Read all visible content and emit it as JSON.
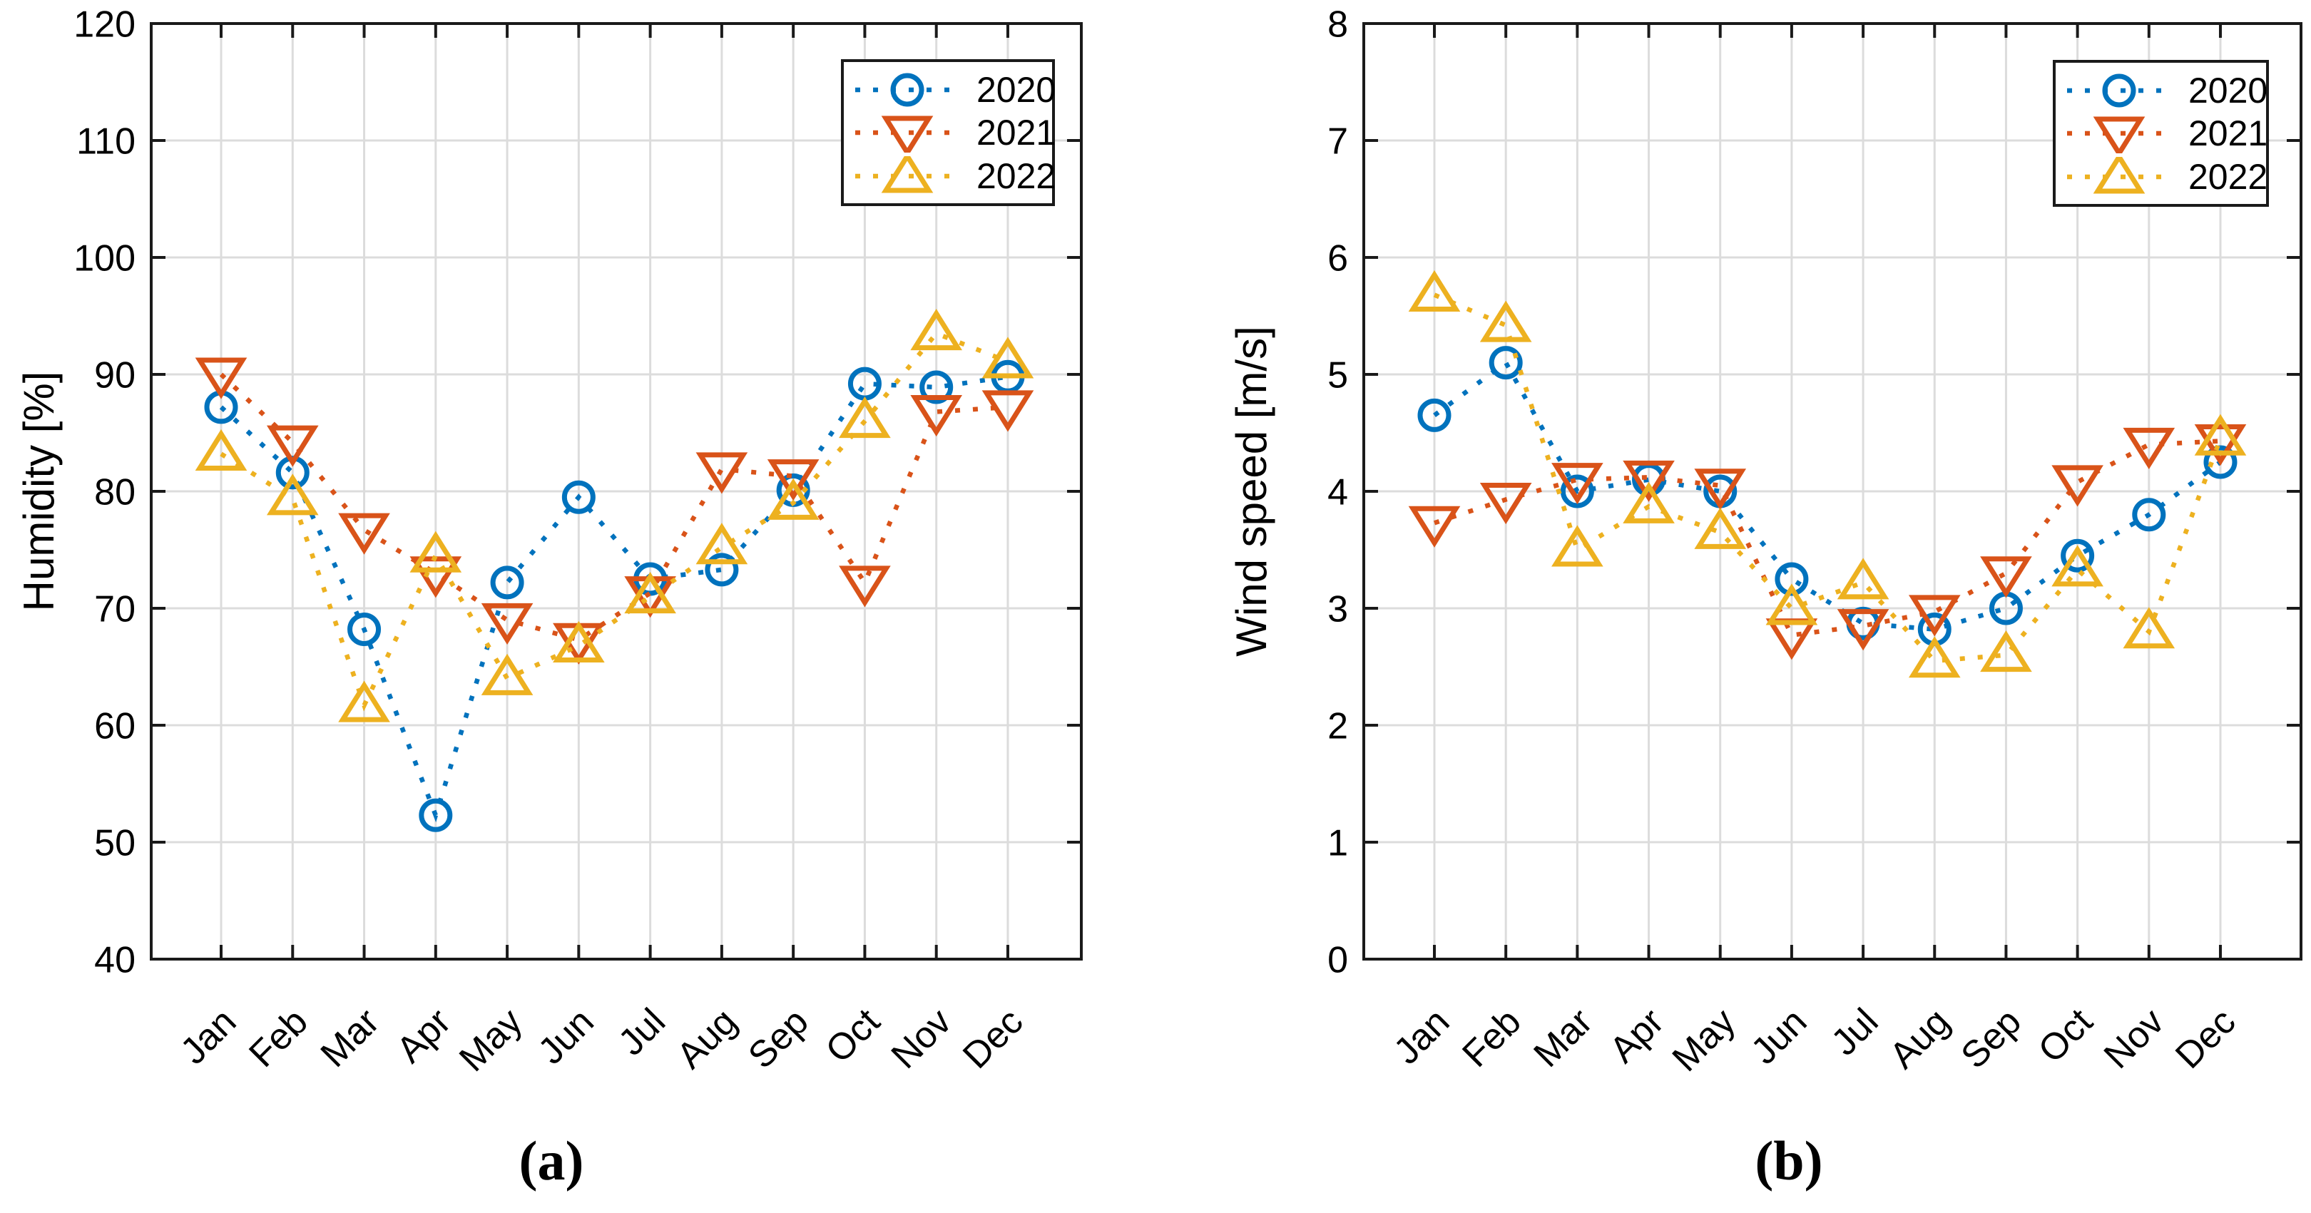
{
  "figure": {
    "background": "#ffffff",
    "axis_color": "#1a1a1a",
    "grid_color": "#dcdcdc",
    "captions": [
      "(a)",
      "(b)"
    ]
  },
  "chart_data": [
    {
      "type": "line",
      "panel": "a",
      "caption": "(a)",
      "title": "",
      "xlabel": "",
      "ylabel": "Humidity [%]",
      "categories": [
        "Jan",
        "Feb",
        "Mar",
        "Apr",
        "May",
        "Jun",
        "Jul",
        "Aug",
        "Sep",
        "Oct",
        "Nov",
        "Dec"
      ],
      "ylim": [
        40,
        120
      ],
      "yticks": [
        40,
        50,
        60,
        70,
        80,
        90,
        100,
        110,
        120
      ],
      "grid": true,
      "legend": {
        "position": "top-right",
        "entries": [
          "2020",
          "2021",
          "2022"
        ]
      },
      "series": [
        {
          "name": "2020",
          "color": "#0072BD",
          "marker": "circle",
          "linestyle": "dotted",
          "values": [
            87.2,
            81.6,
            68.2,
            52.3,
            72.2,
            79.5,
            72.5,
            73.3,
            80.1,
            89.2,
            88.9,
            89.8
          ]
        },
        {
          "name": "2021",
          "color": "#D95319",
          "marker": "triangle-down",
          "linestyle": "dotted",
          "values": [
            90.0,
            84.2,
            76.7,
            73.0,
            69.0,
            67.3,
            71.3,
            81.9,
            81.3,
            72.2,
            86.8,
            87.2
          ]
        },
        {
          "name": "2022",
          "color": "#EDB120",
          "marker": "triangle-up",
          "linestyle": "dotted",
          "values": [
            83.2,
            79.4,
            61.7,
            74.5,
            64.0,
            66.8,
            71.0,
            75.2,
            79.0,
            86.0,
            93.5,
            91.1
          ]
        }
      ]
    },
    {
      "type": "line",
      "panel": "b",
      "caption": "(b)",
      "title": "",
      "xlabel": "",
      "ylabel": "Wind speed [m/s]",
      "categories": [
        "Jan",
        "Feb",
        "Mar",
        "Apr",
        "May",
        "Jun",
        "Jul",
        "Aug",
        "Sep",
        "Oct",
        "Nov",
        "Dec"
      ],
      "ylim": [
        0,
        8
      ],
      "yticks": [
        0,
        1,
        2,
        3,
        4,
        5,
        6,
        7,
        8
      ],
      "grid": true,
      "legend": {
        "position": "top-right",
        "entries": [
          "2020",
          "2021",
          "2022"
        ]
      },
      "series": [
        {
          "name": "2020",
          "color": "#0072BD",
          "marker": "circle",
          "linestyle": "dotted",
          "values": [
            4.65,
            5.1,
            4.0,
            4.1,
            4.0,
            3.25,
            2.87,
            2.82,
            3.0,
            3.45,
            3.8,
            4.25
          ]
        },
        {
          "name": "2021",
          "color": "#D95319",
          "marker": "triangle-down",
          "linestyle": "dotted",
          "values": [
            3.73,
            3.93,
            4.1,
            4.12,
            4.05,
            2.77,
            2.85,
            2.97,
            3.3,
            4.08,
            4.4,
            4.43
          ]
        },
        {
          "name": "2022",
          "color": "#EDB120",
          "marker": "triangle-up",
          "linestyle": "dotted",
          "values": [
            5.68,
            5.42,
            3.5,
            3.87,
            3.65,
            3.0,
            3.22,
            2.55,
            2.6,
            3.33,
            2.8,
            4.45
          ]
        }
      ]
    }
  ]
}
